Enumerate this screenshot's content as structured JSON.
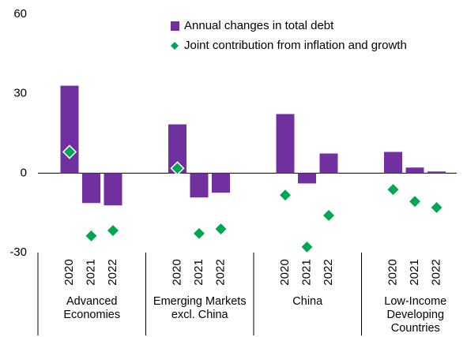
{
  "chart_data": {
    "type": "bar",
    "categories": [
      "2020",
      "2021",
      "2022",
      "2020",
      "2021",
      "2022",
      "2020",
      "2021",
      "2022",
      "2020",
      "2021",
      "2022"
    ],
    "groups": [
      "Advanced Economies",
      "Emerging Markets excl. China",
      "China",
      "Low-Income Developing Countries"
    ],
    "series": [
      {
        "name": "Annual changes in total debt",
        "color": "#7030a0",
        "type": "bar",
        "values": [
          33,
          -11.3,
          -12.2,
          18.4,
          -9.2,
          -7.4,
          22.3,
          -3.9,
          7.4,
          8.0,
          2.1,
          0.6
        ]
      },
      {
        "name": "Joint contribution from inflation and growth",
        "color": "#00a651",
        "type": "scatter",
        "values": [
          8,
          -23.7,
          -21.7,
          1.8,
          -22.8,
          -21.1,
          -8.3,
          -27.9,
          -16,
          -6.2,
          -10.7,
          -13
        ]
      }
    ],
    "ylim": [
      -30,
      60
    ],
    "yticks": [
      -30,
      0,
      30,
      60
    ],
    "grid": false
  }
}
